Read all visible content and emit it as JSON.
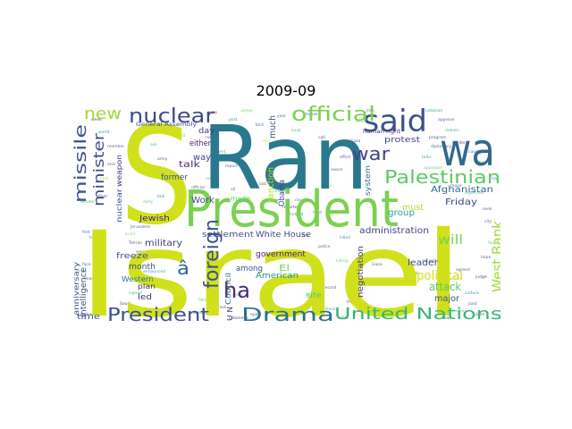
{
  "figure": {
    "title": "2009-09"
  },
  "palette": {
    "dark_purple": "#482878",
    "purple": "#472d7b",
    "slate_blue": "#3b528b",
    "steel_blue": "#31688e",
    "teal": "#21918c",
    "sea_green": "#35b779",
    "green": "#5ec962",
    "lime": "#a0da39",
    "yellow": "#d0e11c",
    "bright_yellow": "#e0e32b",
    "deep_teal": "#2a788e"
  },
  "words": [
    {
      "text": "Israel",
      "color": "#d0e11c"
    },
    {
      "text": "Ran",
      "color": "#2a788e"
    },
    {
      "text": "S",
      "color": "#d0e11c"
    },
    {
      "text": "President",
      "color": "#7ad151"
    },
    {
      "text": "wa",
      "color": "#31688e"
    },
    {
      "text": "said",
      "color": "#3b528b"
    },
    {
      "text": "official",
      "color": "#7ad151"
    },
    {
      "text": "nuclear",
      "color": "#3e4a89"
    },
    {
      "text": "new",
      "color": "#a0da39"
    },
    {
      "text": "missile",
      "color": "#3b528b"
    },
    {
      "text": "minister",
      "color": "#3e4a89"
    },
    {
      "text": "war",
      "color": "#414487"
    },
    {
      "text": "Palestinian",
      "color": "#5ec962"
    },
    {
      "text": "foreign",
      "color": "#3b528b"
    },
    {
      "text": "ha",
      "color": "#482878"
    },
    {
      "text": "President",
      "color": "#3b528b"
    },
    {
      "text": "Drama",
      "color": "#2c728e"
    },
    {
      "text": "United Nations",
      "color": "#35b779"
    },
    {
      "text": "West Bank",
      "color": "#a0da39"
    },
    {
      "text": "Afghanistan",
      "color": "#31688e"
    },
    {
      "text": "Friday",
      "color": "#404688"
    },
    {
      "text": "will",
      "color": "#7ad151"
    },
    {
      "text": "two",
      "color": "#21918c"
    },
    {
      "text": "political",
      "color": "#d0e11c"
    },
    {
      "text": "attack",
      "color": "#5ec962"
    },
    {
      "text": "major",
      "color": "#3b528b"
    },
    {
      "text": "leader",
      "color": "#3e4a89"
    },
    {
      "text": "administration",
      "color": "#414487"
    },
    {
      "text": "negotiation",
      "color": "#443983"
    },
    {
      "text": "group",
      "color": "#22a884"
    },
    {
      "text": "must",
      "color": "#b5de2b"
    },
    {
      "text": "protest",
      "color": "#3e4a89"
    },
    {
      "text": "system",
      "color": "#31688e"
    },
    {
      "text": "human right",
      "color": "#472d7b"
    },
    {
      "text": "settlement",
      "color": "#3b528b"
    },
    {
      "text": "White House",
      "color": "#3e4a89"
    },
    {
      "text": "military",
      "color": "#443983"
    },
    {
      "text": "Jewish",
      "color": "#481f70"
    },
    {
      "text": "made",
      "color": "#5ec962"
    },
    {
      "text": "government",
      "color": "#481f70"
    },
    {
      "text": "American",
      "color": "#21918c"
    },
    {
      "text": "among",
      "color": "#3b528b"
    },
    {
      "text": "El",
      "color": "#7ad151"
    },
    {
      "text": "site",
      "color": "#5ec962"
    },
    {
      "text": "Council",
      "color": "#31688e"
    },
    {
      "text": "U N",
      "color": "#443983"
    },
    {
      "text": "freeze",
      "color": "#3b528b"
    },
    {
      "text": "month",
      "color": "#3e4a89"
    },
    {
      "text": "â",
      "color": "#31688e"
    },
    {
      "text": "Western",
      "color": "#2c728e"
    },
    {
      "text": "plan",
      "color": "#472d7b"
    },
    {
      "text": "led",
      "color": "#482878"
    },
    {
      "text": "time",
      "color": "#3b528b"
    },
    {
      "text": "intelligence",
      "color": "#3e4a89"
    },
    {
      "text": "anniversary",
      "color": "#3b528b"
    },
    {
      "text": "weapon",
      "color": "#472d7b"
    },
    {
      "text": "nuclear",
      "color": "#3b528b"
    },
    {
      "text": "Work",
      "color": "#3b528b"
    },
    {
      "text": "way",
      "color": "#3e4a89"
    },
    {
      "text": "talk",
      "color": "#482878"
    },
    {
      "text": "former",
      "color": "#3b528b"
    },
    {
      "text": "day",
      "color": "#443983"
    },
    {
      "text": "either",
      "color": "#481f70"
    },
    {
      "text": "much",
      "color": "#3b528b"
    },
    {
      "text": "sanction",
      "color": "#b5de2b"
    },
    {
      "text": "Obama",
      "color": "#3e4a89"
    },
    {
      "text": "across",
      "color": "#21918c"
    },
    {
      "text": "General Assembly",
      "color": "#3b528b"
    }
  ]
}
